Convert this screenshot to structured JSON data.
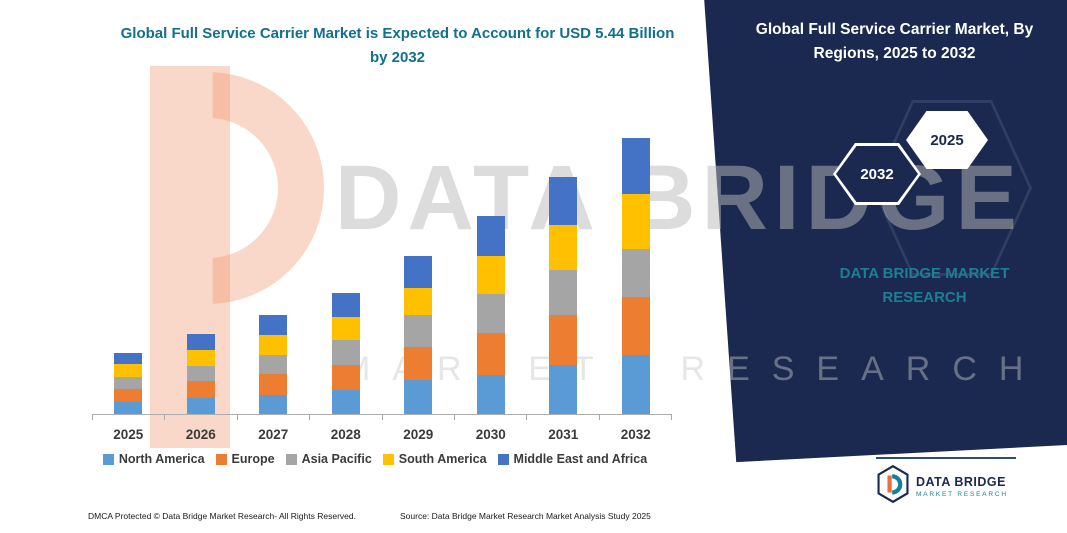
{
  "header": {
    "left_title": "Global Full Service Carrier Market is Expected to Account for USD 5.44 Billion by 2032",
    "right_title": "Global Full Service Carrier Market, By Regions, 2025 to 2032"
  },
  "badges": {
    "back": "2032",
    "front": "2025"
  },
  "panel": {
    "brand_text": "DATA BRIDGE MARKET RESEARCH",
    "background": "#1b2950"
  },
  "watermarks": {
    "big": "DATA BRIDGE",
    "sub": "MARKET RESEARCH"
  },
  "chart_data": {
    "type": "bar",
    "stacked": true,
    "title": "Global Full Service Carrier Market is Expected to Account for USD 5.44 Billion by 2032",
    "unit": "USD Billion",
    "categories": [
      "2025",
      "2026",
      "2027",
      "2028",
      "2029",
      "2030",
      "2031",
      "2032"
    ],
    "series": [
      {
        "name": "North America",
        "color": "#5B9BD5",
        "values": [
          0.25,
          0.33,
          0.39,
          0.49,
          0.68,
          0.78,
          0.98,
          1.17
        ]
      },
      {
        "name": "Europe",
        "color": "#ED7D31",
        "values": [
          0.25,
          0.33,
          0.41,
          0.49,
          0.65,
          0.82,
          0.98,
          1.15
        ]
      },
      {
        "name": "Asia Pacific",
        "color": "#A5A5A5",
        "values": [
          0.24,
          0.31,
          0.37,
          0.49,
          0.63,
          0.78,
          0.88,
          0.94
        ]
      },
      {
        "name": "South America",
        "color": "#FFC000",
        "values": [
          0.25,
          0.31,
          0.39,
          0.45,
          0.53,
          0.74,
          0.88,
          1.08
        ]
      },
      {
        "name": "Middle East and Africa",
        "color": "#4472C4",
        "values": [
          0.22,
          0.32,
          0.4,
          0.47,
          0.64,
          0.79,
          0.94,
          1.1
        ]
      }
    ],
    "totals": [
      1.21,
      1.6,
      1.96,
      2.39,
      3.13,
      3.91,
      4.66,
      5.44
    ],
    "xlabel": "",
    "ylabel": "",
    "ylim": [
      0,
      6
    ],
    "grid": false,
    "legend_position": "bottom"
  },
  "footer": {
    "left": "DMCA Protected © Data Bridge Market Research-  All Rights Reserved.",
    "source": "Source: Data Bridge Market Research  Market Analysis Study 2025"
  },
  "logo": {
    "name": "DATA BRIDGE",
    "tagline": "MARKET RESEARCH"
  }
}
